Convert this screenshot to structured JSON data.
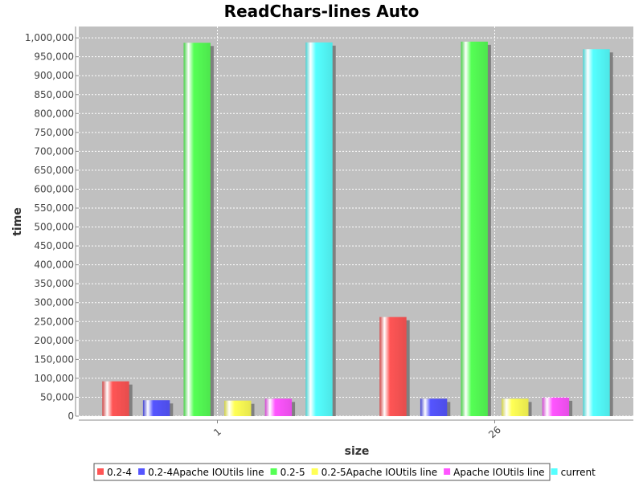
{
  "chart_data": {
    "type": "bar",
    "title": "ReadChars-lines Auto",
    "xlabel": "size",
    "ylabel": "time",
    "categories": [
      "1",
      "26"
    ],
    "ylim": [
      0,
      1030000
    ],
    "ytick_step": 50000,
    "grid": true,
    "legend_position": "bottom",
    "series": [
      {
        "name": "0.2-4",
        "color": "#ff5555",
        "values": [
          92000,
          262000
        ]
      },
      {
        "name": "0.2-4Apache IOUtils line",
        "color": "#5555ff",
        "values": [
          42000,
          46000
        ]
      },
      {
        "name": "0.2-5",
        "color": "#55ff55",
        "values": [
          987000,
          990000
        ]
      },
      {
        "name": "0.2-5Apache IOUtils line",
        "color": "#ffff55",
        "values": [
          41000,
          46000
        ]
      },
      {
        "name": "Apache IOUtils line",
        "color": "#ff55ff",
        "values": [
          46000,
          49000
        ]
      },
      {
        "name": "current",
        "color": "#55ffff",
        "values": [
          988000,
          970000
        ]
      }
    ]
  }
}
